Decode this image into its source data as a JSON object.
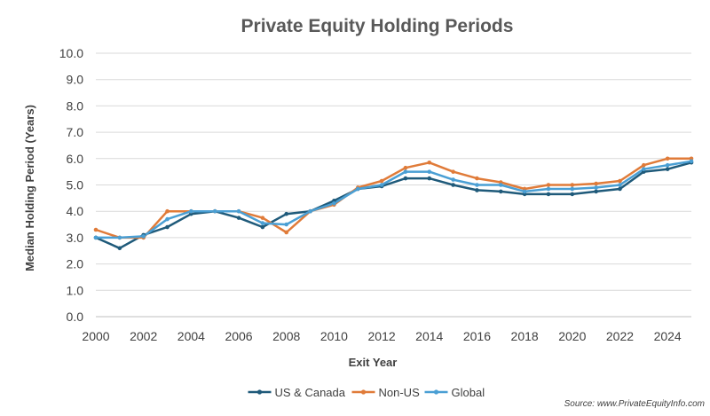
{
  "chart_data": {
    "type": "line",
    "title": "Private Equity Holding Periods",
    "xlabel": "Exit Year",
    "ylabel": "Median Holding Period (Years)",
    "xlim": [
      2000,
      2025
    ],
    "ylim": [
      0,
      10
    ],
    "x_ticks": [
      2000,
      2002,
      2004,
      2006,
      2008,
      2010,
      2012,
      2014,
      2016,
      2018,
      2020,
      2022,
      2024
    ],
    "y_ticks": [
      "0.0",
      "1.0",
      "2.0",
      "3.0",
      "4.0",
      "5.0",
      "6.0",
      "7.0",
      "8.0",
      "9.0",
      "10.0"
    ],
    "grid": "horizontal",
    "legend_position": "bottom",
    "x": [
      2000,
      2001,
      2002,
      2003,
      2004,
      2005,
      2006,
      2007,
      2008,
      2009,
      2010,
      2011,
      2012,
      2013,
      2014,
      2015,
      2016,
      2017,
      2018,
      2019,
      2020,
      2021,
      2022,
      2023,
      2024,
      2025
    ],
    "series": [
      {
        "name": "US & Canada",
        "color": "#1f5a7a",
        "values": [
          3.0,
          2.6,
          3.1,
          3.4,
          3.9,
          4.0,
          3.75,
          3.4,
          3.9,
          4.0,
          4.4,
          4.85,
          4.95,
          5.25,
          5.25,
          5.0,
          4.8,
          4.75,
          4.65,
          4.65,
          4.65,
          4.75,
          4.85,
          5.5,
          5.6,
          5.85
        ]
      },
      {
        "name": "Non-US",
        "color": "#e07b39",
        "values": [
          3.3,
          3.0,
          3.0,
          4.0,
          4.0,
          4.0,
          4.0,
          3.75,
          3.2,
          4.0,
          4.25,
          4.9,
          5.15,
          5.65,
          5.85,
          5.5,
          5.25,
          5.1,
          4.85,
          5.0,
          5.0,
          5.05,
          5.15,
          5.75,
          6.0,
          6.0
        ]
      },
      {
        "name": "Global",
        "color": "#4a9fd4",
        "values": [
          3.0,
          3.0,
          3.05,
          3.7,
          4.0,
          4.0,
          4.0,
          3.55,
          3.5,
          4.0,
          4.3,
          4.85,
          5.0,
          5.5,
          5.5,
          5.2,
          5.0,
          5.0,
          4.75,
          4.85,
          4.85,
          4.9,
          5.0,
          5.6,
          5.75,
          5.9
        ]
      }
    ],
    "source": "Source: www.PrivateEquityInfo.com"
  }
}
